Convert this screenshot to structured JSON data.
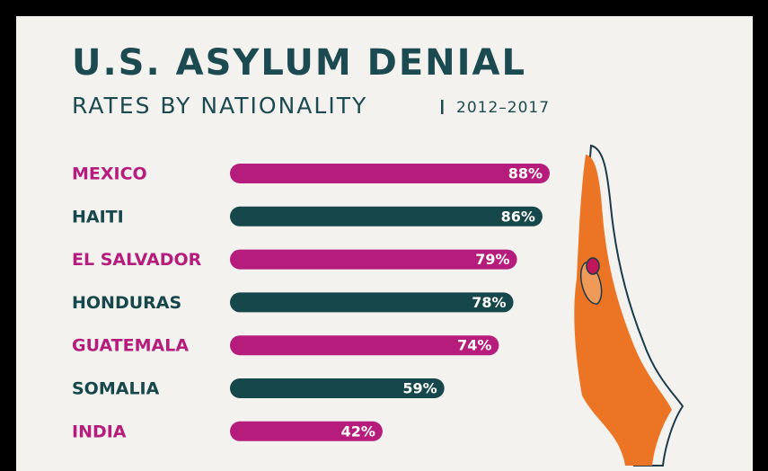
{
  "chart_data": {
    "type": "bar",
    "orientation": "horizontal",
    "title": "U.S. ASYLUM DENIAL",
    "subtitle": "RATES BY NATIONALITY",
    "period": "2012–2017",
    "categories": [
      "MEXICO",
      "HAITI",
      "EL SALVADOR",
      "HONDURAS",
      "GUATEMALA",
      "SOMALIA",
      "INDIA"
    ],
    "values": [
      88,
      86,
      79,
      78,
      74,
      59,
      42
    ],
    "value_labels": [
      "88%",
      "86%",
      "79%",
      "78%",
      "74%",
      "59%",
      "42%"
    ],
    "colors": [
      "#b51c7c",
      "#16474a",
      "#b51c7c",
      "#16474a",
      "#b51c7c",
      "#16474a",
      "#b51c7c"
    ]
  }
}
